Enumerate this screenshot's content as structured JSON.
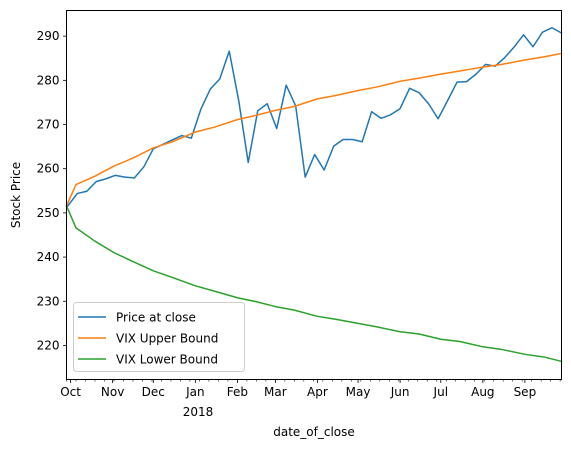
{
  "chart_data": {
    "type": "line",
    "title": "",
    "xlabel": "date_of_close",
    "ylabel": "Stock Price",
    "xlim": [
      "2017-09-28",
      "2018-09-28"
    ],
    "ylim": [
      212.3,
      295.8
    ],
    "grid": false,
    "legend_position": "lower-left",
    "y_ticks": [
      220,
      230,
      240,
      250,
      260,
      270,
      280,
      290
    ],
    "x_ticks": [
      {
        "date": "2017-10-01",
        "label": "Oct"
      },
      {
        "date": "2017-11-01",
        "label": "Nov"
      },
      {
        "date": "2017-12-01",
        "label": "Dec"
      },
      {
        "date": "2018-01-01",
        "label": "Jan"
      },
      {
        "date": "2018-02-01",
        "label": "Feb"
      },
      {
        "date": "2018-03-01",
        "label": "Mar"
      },
      {
        "date": "2018-04-01",
        "label": "Apr"
      },
      {
        "date": "2018-05-01",
        "label": "May"
      },
      {
        "date": "2018-06-01",
        "label": "Jun"
      },
      {
        "date": "2018-07-01",
        "label": "Jul"
      },
      {
        "date": "2018-08-01",
        "label": "Aug"
      },
      {
        "date": "2018-09-01",
        "label": "Sep"
      }
    ],
    "year_label": "2018",
    "series": [
      {
        "name": "Price at close",
        "color": "#1f77b4",
        "points": [
          [
            "2017-09-29",
            251.6
          ],
          [
            "2017-10-06",
            254.4
          ],
          [
            "2017-10-13",
            254.9
          ],
          [
            "2017-10-20",
            257.1
          ],
          [
            "2017-10-27",
            257.7
          ],
          [
            "2017-11-03",
            258.5
          ],
          [
            "2017-11-10",
            258.1
          ],
          [
            "2017-11-17",
            257.9
          ],
          [
            "2017-11-24",
            260.4
          ],
          [
            "2017-12-01",
            264.5
          ],
          [
            "2017-12-08",
            265.5
          ],
          [
            "2017-12-15",
            266.5
          ],
          [
            "2017-12-22",
            267.5
          ],
          [
            "2017-12-29",
            266.9
          ],
          [
            "2018-01-05",
            273.4
          ],
          [
            "2018-01-12",
            278.0
          ],
          [
            "2018-01-19",
            280.3
          ],
          [
            "2018-01-26",
            286.6
          ],
          [
            "2018-02-02",
            275.4
          ],
          [
            "2018-02-09",
            261.4
          ],
          [
            "2018-02-16",
            273.1
          ],
          [
            "2018-02-23",
            274.7
          ],
          [
            "2018-03-02",
            269.1
          ],
          [
            "2018-03-09",
            278.9
          ],
          [
            "2018-03-16",
            274.2
          ],
          [
            "2018-03-23",
            258.1
          ],
          [
            "2018-03-30",
            263.2
          ],
          [
            "2018-04-06",
            259.7
          ],
          [
            "2018-04-13",
            265.1
          ],
          [
            "2018-04-20",
            266.6
          ],
          [
            "2018-04-27",
            266.6
          ],
          [
            "2018-05-04",
            266.1
          ],
          [
            "2018-05-11",
            272.9
          ],
          [
            "2018-05-18",
            271.4
          ],
          [
            "2018-05-25",
            272.2
          ],
          [
            "2018-06-01",
            273.6
          ],
          [
            "2018-06-08",
            278.2
          ],
          [
            "2018-06-15",
            277.2
          ],
          [
            "2018-06-22",
            274.7
          ],
          [
            "2018-06-29",
            271.3
          ],
          [
            "2018-07-06",
            275.4
          ],
          [
            "2018-07-13",
            279.6
          ],
          [
            "2018-07-20",
            279.7
          ],
          [
            "2018-07-27",
            281.4
          ],
          [
            "2018-08-03",
            283.6
          ],
          [
            "2018-08-10",
            283.2
          ],
          [
            "2018-08-17",
            285.1
          ],
          [
            "2018-08-24",
            287.5
          ],
          [
            "2018-08-31",
            290.3
          ],
          [
            "2018-09-07",
            287.6
          ],
          [
            "2018-09-14",
            290.9
          ],
          [
            "2018-09-21",
            291.9
          ],
          [
            "2018-09-28",
            290.7
          ]
        ]
      },
      {
        "name": "VIX Upper Bound",
        "color": "#ff7f0e",
        "points": [
          [
            "2017-09-28",
            251.6
          ],
          [
            "2017-10-05",
            256.4
          ],
          [
            "2017-10-19",
            258.3
          ],
          [
            "2017-11-02",
            260.6
          ],
          [
            "2017-11-16",
            262.4
          ],
          [
            "2017-12-01",
            264.7
          ],
          [
            "2017-12-15",
            266.1
          ],
          [
            "2018-01-01",
            268.3
          ],
          [
            "2018-01-15",
            269.4
          ],
          [
            "2018-02-01",
            271.1
          ],
          [
            "2018-02-15",
            272.1
          ],
          [
            "2018-03-01",
            273.2
          ],
          [
            "2018-03-15",
            274.1
          ],
          [
            "2018-04-01",
            275.8
          ],
          [
            "2018-04-15",
            276.6
          ],
          [
            "2018-05-01",
            277.7
          ],
          [
            "2018-05-15",
            278.5
          ],
          [
            "2018-06-01",
            279.8
          ],
          [
            "2018-06-15",
            280.5
          ],
          [
            "2018-07-01",
            281.4
          ],
          [
            "2018-07-15",
            282.1
          ],
          [
            "2018-08-01",
            283.0
          ],
          [
            "2018-08-15",
            283.6
          ],
          [
            "2018-09-01",
            284.6
          ],
          [
            "2018-09-15",
            285.3
          ],
          [
            "2018-09-28",
            286.1
          ]
        ]
      },
      {
        "name": "VIX Lower Bound",
        "color": "#2ca02c",
        "points": [
          [
            "2017-09-28",
            251.6
          ],
          [
            "2017-10-05",
            246.6
          ],
          [
            "2017-10-19",
            243.6
          ],
          [
            "2017-11-02",
            241.0
          ],
          [
            "2017-11-16",
            239.0
          ],
          [
            "2017-12-01",
            236.9
          ],
          [
            "2017-12-15",
            235.4
          ],
          [
            "2018-01-01",
            233.5
          ],
          [
            "2018-01-15",
            232.3
          ],
          [
            "2018-02-01",
            230.8
          ],
          [
            "2018-02-15",
            229.9
          ],
          [
            "2018-03-01",
            228.8
          ],
          [
            "2018-03-15",
            228.0
          ],
          [
            "2018-04-01",
            226.6
          ],
          [
            "2018-04-15",
            225.9
          ],
          [
            "2018-05-01",
            225.0
          ],
          [
            "2018-05-15",
            224.2
          ],
          [
            "2018-06-01",
            223.1
          ],
          [
            "2018-06-15",
            222.6
          ],
          [
            "2018-07-01",
            221.4
          ],
          [
            "2018-07-15",
            220.9
          ],
          [
            "2018-08-01",
            219.7
          ],
          [
            "2018-08-15",
            219.1
          ],
          [
            "2018-09-01",
            218.0
          ],
          [
            "2018-09-15",
            217.4
          ],
          [
            "2018-09-28",
            216.4
          ]
        ]
      }
    ]
  }
}
